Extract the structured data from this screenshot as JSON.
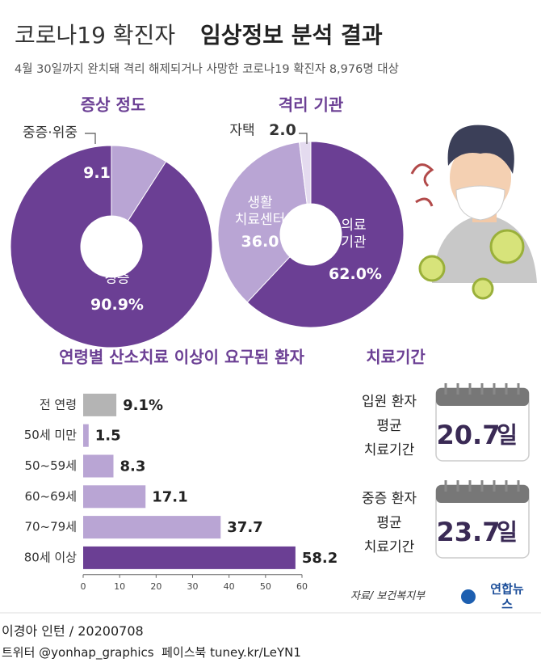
{
  "header": {
    "title_light": "코로나19 확진자",
    "title_bold": "임상정보 분석 결과",
    "subtitle": "4월 30일까지 완치돼 격리 해제되거나 사망한 코로나19 확진자 8,976명 대상"
  },
  "chart_data": [
    {
      "type": "pie",
      "title": "증상 정도",
      "categories": [
        "중증·위중",
        "경증"
      ],
      "values": [
        9.1,
        90.9
      ],
      "value_labels": [
        "9.1",
        "90.9%"
      ],
      "colors": [
        "#b9a5d4",
        "#6b3f94"
      ]
    },
    {
      "type": "pie",
      "title": "격리 기관",
      "categories": [
        "의료\n기관",
        "생활\n치료센터",
        "자택"
      ],
      "values": [
        62,
        36,
        2
      ],
      "value_labels": [
        "62.0%",
        "36.0",
        "2.0"
      ],
      "colors": [
        "#6b3f94",
        "#b9a5d4",
        "#e4dbef"
      ]
    },
    {
      "type": "bar",
      "orientation": "horizontal",
      "title": "연령별 산소치료 이상이 요구된 환자",
      "categories": [
        "전 연령",
        "50세 미만",
        "50~59세",
        "60~69세",
        "70~79세",
        "80세 이상"
      ],
      "values": [
        9.1,
        1.5,
        8.3,
        17.1,
        37.7,
        58.2
      ],
      "value_labels": [
        "9.1%",
        "1.5",
        "8.3",
        "17.1",
        "37.7",
        "58.2"
      ],
      "colors": [
        "#b4b4b4",
        "#b9a5d4",
        "#b9a5d4",
        "#b9a5d4",
        "#b9a5d4",
        "#6b3f94"
      ],
      "xlim": [
        0,
        60
      ],
      "xticks": [
        0,
        10,
        20,
        30,
        40,
        50,
        60
      ]
    }
  ],
  "treatment": {
    "title": "치료기간",
    "cards": [
      {
        "label": "입원 환자\n평균\n치료기간",
        "value": 20.7,
        "unit": "일"
      },
      {
        "label": "중증 환자\n평균\n치료기간",
        "value": 23.7,
        "unit": "일"
      }
    ]
  },
  "source": "자료/ 보건복지부",
  "logo": "연합뉴스",
  "footer": {
    "credit": "이경아 인턴 / 20200708",
    "social": "트위터 @yonhap_graphics  페이스북 tuney.kr/LeYN1"
  }
}
